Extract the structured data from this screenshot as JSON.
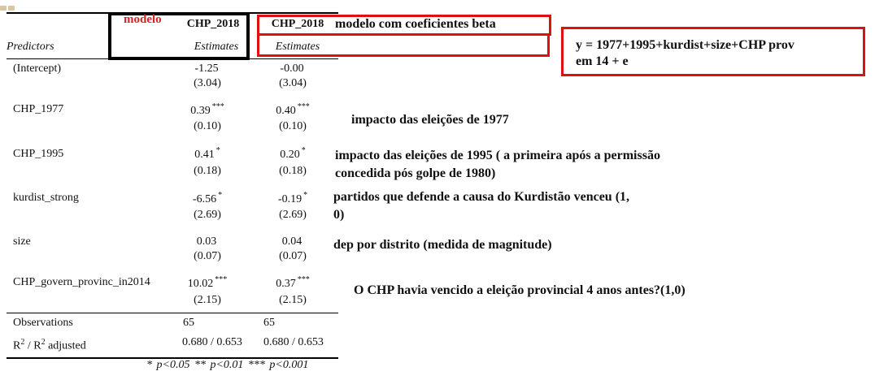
{
  "table": {
    "col_header_label": "Predictors",
    "models": [
      {
        "name": "CHP_2018",
        "subheader": "Estimates"
      },
      {
        "name": "CHP_2018",
        "subheader": "Estimates"
      }
    ],
    "rows": [
      {
        "predictor": "(Intercept)",
        "m1": {
          "est": "-1.25",
          "se": "(3.04)",
          "stars": ""
        },
        "m2": {
          "est": "-0.00",
          "se": "(3.04)",
          "stars": ""
        }
      },
      {
        "predictor": "CHP_1977",
        "m1": {
          "est": "0.39",
          "se": "(0.10)",
          "stars": "***"
        },
        "m2": {
          "est": "0.40",
          "se": "(0.10)",
          "stars": "***"
        }
      },
      {
        "predictor": "CHP_1995",
        "m1": {
          "est": "0.41",
          "se": "(0.18)",
          "stars": "*"
        },
        "m2": {
          "est": "0.20",
          "se": "(0.18)",
          "stars": "*"
        }
      },
      {
        "predictor": "kurdist_strong",
        "m1": {
          "est": "-6.56",
          "se": "(2.69)",
          "stars": "*"
        },
        "m2": {
          "est": "-0.19",
          "se": "(2.69)",
          "stars": "*"
        }
      },
      {
        "predictor": "size",
        "m1": {
          "est": "0.03",
          "se": "(0.07)",
          "stars": ""
        },
        "m2": {
          "est": "0.04",
          "se": "(0.07)",
          "stars": ""
        }
      },
      {
        "predictor": "CHP_govern_provinc_in2014",
        "m1": {
          "est": "10.02",
          "se": "(2.15)",
          "stars": "***"
        },
        "m2": {
          "est": "0.37",
          "se": "(2.15)",
          "stars": "***"
        }
      }
    ],
    "observations": {
      "label": "Observations",
      "m1": "65",
      "m2": "65"
    },
    "r2": {
      "label_r": "R",
      "label_sep": " / R",
      "label_adj": " adjusted",
      "sup": "2",
      "m1": "0.680 / 0.653",
      "m2": "0.680 / 0.653"
    },
    "footer": "* p<0.05   ** p<0.01   *** p<0.001"
  },
  "annotations": {
    "modelo": "modelo",
    "beta_label": "modelo com coeficientes beta",
    "equation_line1": "y = 1977+1995+kurdist+size+CHP prov",
    "equation_line2": "em 14 + e",
    "note_1977": "impacto das eleições de 1977",
    "note_1995_line1": "impacto das eleições de 1995 ( a primeira após a permissão",
    "note_1995_line2": "concedida pós golpe de 1980)",
    "note_kurd_line1": "partidos que defende a causa do Kurdistão venceu (1,",
    "note_kurd_line2": "0)",
    "note_size": "dep por distrito (medida de magnitude)",
    "note_prov": "O CHP havia vencido a eleição provincial 4 anos antes?(1,0)"
  },
  "colors": {
    "accent_red": "#e01010",
    "black": "#000000"
  }
}
